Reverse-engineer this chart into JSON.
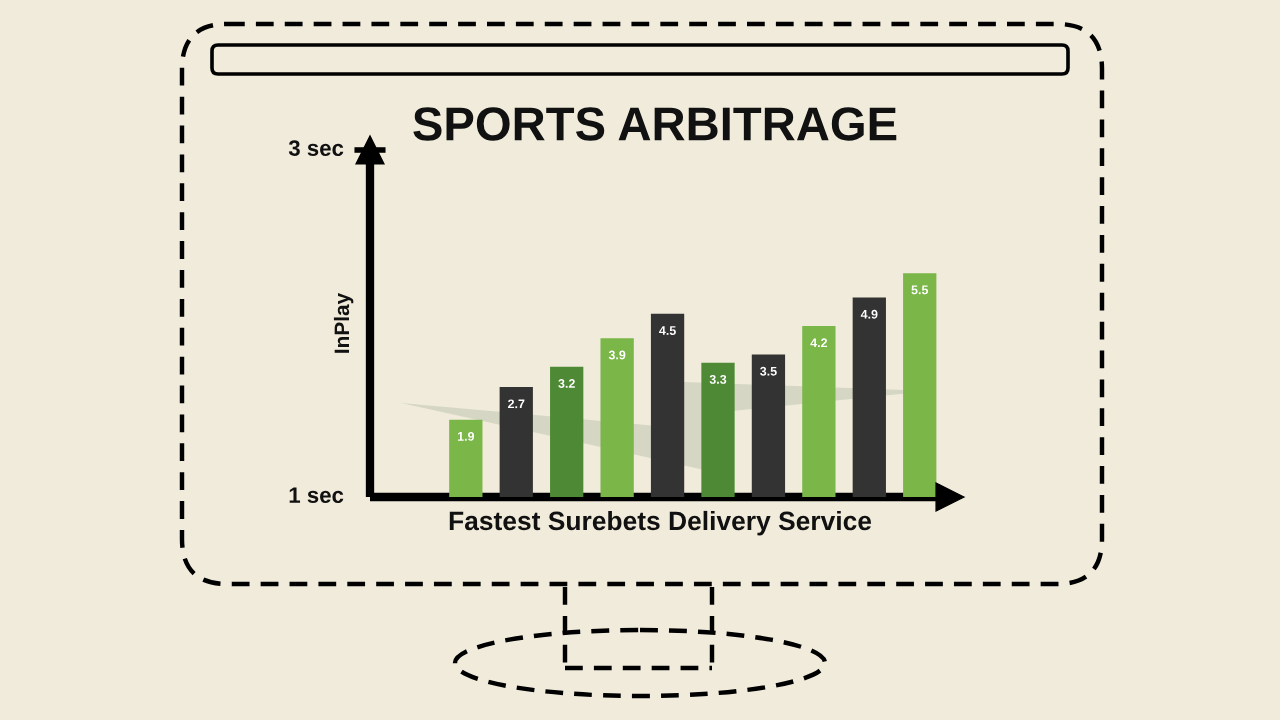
{
  "chart_data": {
    "type": "bar",
    "title": "SPORTS ARBITRAGE",
    "xlabel": "Fastest Surebets Delivery Service",
    "ylabel": "InPlay",
    "annotations": [
      "3 sec",
      "1 sec"
    ],
    "categories": [
      null,
      null,
      null,
      null,
      null,
      null,
      null,
      null,
      null,
      null
    ],
    "values": [
      1.9,
      2.7,
      3.2,
      3.9,
      4.5,
      3.3,
      3.5,
      4.2,
      4.9,
      5.5
    ],
    "colors": [
      "#7ab648",
      "#333333",
      "#4e8a35",
      "#7ab648",
      "#333333",
      "#4e8a35",
      "#333333",
      "#7ab648",
      "#333333",
      "#7ab648"
    ],
    "data_labels": true,
    "grid": false,
    "legend": false,
    "tick_labels": false
  }
}
